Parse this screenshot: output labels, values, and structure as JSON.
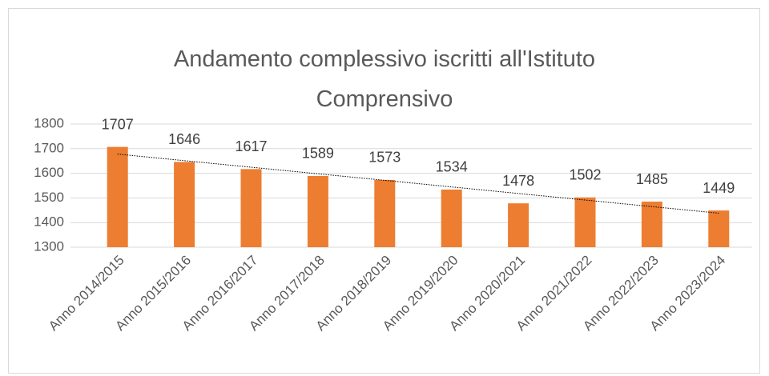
{
  "chart_data": {
    "type": "bar",
    "title": "Andamento complessivo iscritti all'Istituto Comprensivo",
    "categories": [
      "Anno 2014/2015",
      "Anno 2015/2016",
      "Anno 2016/2017",
      "Anno 2017/2018",
      "Anno 2018/2019",
      "Anno 2019/2020",
      "Anno 2020/2021",
      "Anno 2021/2022",
      "Anno 2022/2023",
      "Anno 2023/2024"
    ],
    "values": [
      1707,
      1646,
      1617,
      1589,
      1573,
      1534,
      1478,
      1502,
      1485,
      1449
    ],
    "color": "#ed7d31",
    "ylim": [
      1300,
      1800
    ],
    "yticks": [
      1300,
      1400,
      1500,
      1600,
      1700,
      1800
    ],
    "grid": true,
    "trendline": "linear"
  }
}
